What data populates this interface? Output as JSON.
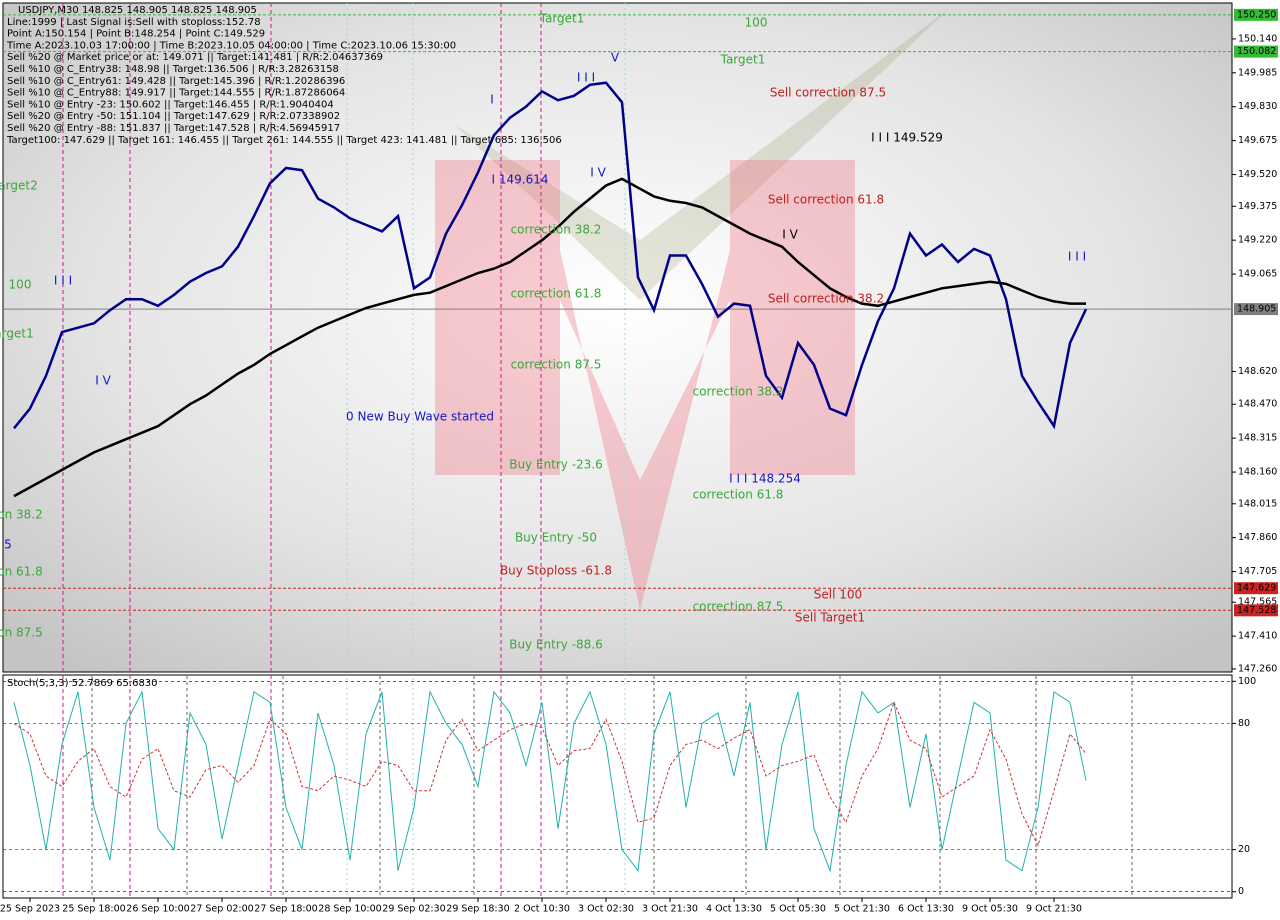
{
  "info_lines": [
    "USDJPY,M30  148.825 148.905 148.825 148.905",
    "Line:1999 | Last Signal is:Sell with stoploss:152.78",
    "Point A:150.154 | Point B:148.254 | Point C:149.529",
    "Time A:2023.10.03 17:00:00 | Time B:2023.10.05 04:00:00 | Time C:2023.10.06 15:30:00",
    "Sell %20 @ Market price or at: 149.071 || Target:141.481 | R/R:2.04637369",
    "Sell %10 @ C_Entry38: 148.98 || Target:136.506 | R/R:3.28263158",
    "Sell %10 @ C_Entry61: 149.428 || Target:145.396 | R/R:1.20286396",
    "Sell %10 @ C_Entry88: 149.917 || Target:144.555 | R/R:1.87286064",
    "Sell %10 @ Entry -23: 150.602 || Target:146.455 | R/R:1.9040404",
    "Sell %20 @ Entry -50: 151.104 || Target:147.629 | R/R:2.07338902",
    "Sell %20 @ Entry -88: 151.837 || Target:147.528 | R/R:4.56945917",
    "Target100: 147.629 || Target 161: 146.455 || Target 261: 144.555 || Target 423: 141.481 || Target 685: 136.506"
  ],
  "chart_data": [
    {
      "type": "line",
      "categories": [
        null,
        "25 Sep 2023",
        null,
        null,
        null,
        "25 Sep 18:00",
        null,
        null,
        null,
        "26 Sep 10:00",
        null,
        null,
        null,
        "27 Sep 02:00",
        null,
        null,
        null,
        "27 Sep 18:00",
        null,
        null,
        null,
        "28 Sep 10:00",
        null,
        null,
        null,
        "29 Sep 02:30",
        null,
        null,
        null,
        "29 Sep 18:30",
        null,
        null,
        null,
        "2 Oct 10:30",
        null,
        null,
        null,
        "3 Oct 02:30",
        null,
        null,
        null,
        "3 Oct 21:30",
        null,
        null,
        null,
        "4 Oct 13:30",
        null,
        null,
        null,
        "5 Oct 05:30",
        null,
        null,
        null,
        "5 Oct 21:30",
        null,
        null,
        null,
        "6 Oct 13:30",
        null,
        null,
        null,
        "9 Oct 05:30",
        null,
        null,
        null,
        "9 Oct 21:30",
        null,
        null
      ],
      "series": [
        {
          "color": "#00008b",
          "values": [
            148.36,
            148.45,
            148.6,
            148.8,
            148.82,
            148.84,
            148.9,
            148.95,
            148.95,
            148.92,
            148.97,
            149.03,
            149.07,
            149.1,
            149.19,
            149.33,
            149.48,
            149.55,
            149.54,
            149.41,
            149.37,
            149.32,
            149.29,
            149.26,
            149.33,
            149.0,
            149.05,
            149.25,
            149.38,
            149.53,
            149.7,
            149.78,
            149.83,
            149.9,
            149.86,
            149.88,
            149.93,
            149.94,
            149.85,
            149.05,
            148.9,
            149.15,
            149.15,
            149.02,
            148.87,
            148.93,
            148.92,
            148.6,
            148.5,
            148.75,
            148.65,
            148.45,
            148.42,
            148.65,
            148.85,
            149.0,
            149.25,
            149.15,
            149.2,
            149.12,
            149.18,
            149.15,
            148.95,
            148.6,
            148.48,
            148.37,
            148.75,
            148.905
          ]
        },
        {
          "color": "#000000",
          "values": [
            148.05,
            148.09,
            148.13,
            148.17,
            148.21,
            148.25,
            148.28,
            148.31,
            148.34,
            148.37,
            148.42,
            148.47,
            148.51,
            148.56,
            148.61,
            148.65,
            148.7,
            148.74,
            148.78,
            148.82,
            148.85,
            148.88,
            148.91,
            148.93,
            148.95,
            148.97,
            148.98,
            149.01,
            149.04,
            149.07,
            149.09,
            149.12,
            149.17,
            149.22,
            149.28,
            149.35,
            149.41,
            149.47,
            149.5,
            149.46,
            149.42,
            149.4,
            149.39,
            149.37,
            149.33,
            149.29,
            149.25,
            149.22,
            149.19,
            149.12,
            149.06,
            149.0,
            148.96,
            148.93,
            148.92,
            148.94,
            148.96,
            148.98,
            149.0,
            149.01,
            149.02,
            149.03,
            149.02,
            148.99,
            148.96,
            148.94,
            148.93,
            148.93
          ]
        }
      ],
      "ylim": [
        147.246,
        150.295
      ],
      "yticks": [
        {
          "value": 150.14,
          "label": "150.140"
        },
        {
          "value": 149.985,
          "label": "149.985"
        },
        {
          "value": 149.83,
          "label": "149.830"
        },
        {
          "value": 149.675,
          "label": "149.675"
        },
        {
          "value": 149.52,
          "label": "149.520"
        },
        {
          "value": 149.375,
          "label": "149.375"
        },
        {
          "value": 149.22,
          "label": "149.220"
        },
        {
          "value": 149.065,
          "label": "149.065"
        },
        {
          "value": 148.62,
          "label": "148.620"
        },
        {
          "value": 148.47,
          "label": "148.470"
        },
        {
          "value": 148.315,
          "label": "148.315"
        },
        {
          "value": 148.16,
          "label": "148.160"
        },
        {
          "value": 148.015,
          "label": "148.015"
        },
        {
          "value": 147.86,
          "label": "147.860"
        },
        {
          "value": 147.705,
          "label": "147.705"
        },
        {
          "value": 147.565,
          "label": "147.565"
        },
        {
          "value": 147.41,
          "label": "147.410"
        },
        {
          "value": 147.26,
          "label": "147.260"
        }
      ],
      "levels": [
        {
          "value": 150.25,
          "label": "150.250",
          "color": "#33bb33"
        },
        {
          "value": 150.082,
          "label": "150.082",
          "color": "#33bb33"
        },
        {
          "value": 148.905,
          "label": "148.905",
          "color": "#808080"
        },
        {
          "value": 147.629,
          "label": "147.629",
          "color": "#cc2222"
        },
        {
          "value": 147.528,
          "label": "147.528",
          "color": "#cc2222"
        }
      ],
      "annotations": [
        "Target1",
        "100",
        "Target1",
        "Sell correction 87.5",
        "I I I 149.529",
        "Sell correction 61.8",
        "I V",
        "Sell correction 38.2",
        "I 149.614",
        "correction 38.2",
        "correction 61.8",
        "correction 87.5",
        "0 New Buy Wave started",
        "Buy Entry -23.6",
        "I I I 148.254",
        "correction 61.8",
        "Buy Entry -50",
        "Buy Stoploss -61.8",
        "Sell 100",
        "correction 87.5",
        "Sell Target1",
        "Buy Entry -88.6",
        "correction 38.2",
        "100",
        "arget2",
        "arget1",
        "I I I",
        "I V",
        "I",
        "I I I",
        "V",
        "I V",
        "I I I",
        "5",
        "on 38.2",
        "on 61.8",
        "on 87.5"
      ]
    },
    {
      "type": "line",
      "title": "Stoch(5,3,3) 52.7869 65.6830",
      "series": [
        {
          "color": "#20b2aa",
          "values": [
            90,
            60,
            20,
            70,
            95,
            40,
            15,
            80,
            95,
            30,
            20,
            85,
            70,
            25,
            60,
            95,
            90,
            40,
            20,
            85,
            60,
            15,
            75,
            95,
            10,
            40,
            95,
            80,
            70,
            50,
            95,
            85,
            60,
            90,
            30,
            80,
            95,
            70,
            20,
            10,
            75,
            95,
            40,
            80,
            85,
            55,
            90,
            20,
            70,
            95,
            30,
            10,
            60,
            95,
            85,
            90,
            40,
            75,
            20,
            55,
            90,
            85,
            15,
            10,
            40,
            95,
            90,
            52.7869
          ]
        },
        {
          "color": "#cc3333",
          "dashed": true,
          "values": [
            80,
            75,
            55,
            50,
            62,
            68,
            50,
            45,
            63,
            68,
            48,
            45,
            58,
            60,
            52,
            60,
            82,
            75,
            50,
            48,
            55,
            53,
            50,
            62,
            60,
            48,
            48,
            72,
            82,
            67,
            72,
            77,
            80,
            78,
            60,
            67,
            68,
            82,
            62,
            33,
            35,
            60,
            70,
            72,
            68,
            73,
            77,
            55,
            60,
            62,
            65,
            45,
            33,
            55,
            68,
            90,
            72,
            68,
            45,
            50,
            55,
            77,
            63,
            37,
            22,
            48,
            75,
            65.683
          ]
        }
      ],
      "ylim": [
        -3,
        103
      ],
      "yticks": [
        0,
        20,
        80,
        100
      ]
    }
  ]
}
